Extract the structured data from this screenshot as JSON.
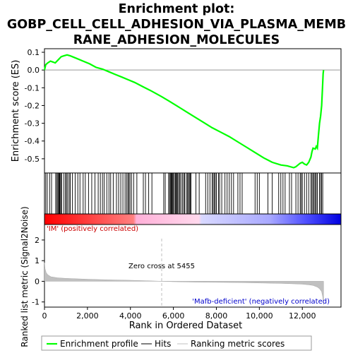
{
  "chart_data": {
    "type": "line",
    "title_lines": [
      "Enrichment plot:",
      "GOBP_CELL_CELL_ADHESION_VIA_PLASMA_MEMB",
      "RANE_ADHESION_MOLECULES"
    ],
    "es_panel": {
      "ylabel": "Enrichment score (ES)",
      "ylim": [
        -0.58,
        0.12
      ],
      "yticks": [
        0.1,
        0.0,
        -0.1,
        -0.2,
        -0.3,
        -0.4,
        -0.5
      ],
      "ytick_labels": [
        "0.1",
        "0.0",
        "-0.1",
        "-0.2",
        "-0.3",
        "-0.4",
        "-0.5"
      ],
      "series": [
        {
          "name": "Enrichment profile",
          "color": "#00ff00",
          "x": [
            0,
            60,
            150,
            280,
            400,
            500,
            620,
            780,
            900,
            1050,
            1200,
            1500,
            1800,
            2100,
            2400,
            2700,
            3000,
            3300,
            3600,
            3900,
            4200,
            4600,
            5000,
            5455,
            5800,
            6200,
            6600,
            7000,
            7400,
            7800,
            8200,
            8600,
            9000,
            9400,
            9800,
            10200,
            10600,
            11000,
            11300,
            11600,
            11700,
            11800,
            11900,
            12000,
            12100,
            12200,
            12300,
            12400,
            12450,
            12500,
            12600,
            12650,
            12700,
            12750,
            12800,
            12850,
            12900,
            12940,
            12970,
            12990
          ],
          "y": [
            0.0,
            0.03,
            0.04,
            0.05,
            0.045,
            0.04,
            0.055,
            0.075,
            0.08,
            0.085,
            0.08,
            0.065,
            0.05,
            0.035,
            0.015,
            0.005,
            -0.01,
            -0.025,
            -0.04,
            -0.055,
            -0.07,
            -0.095,
            -0.12,
            -0.15,
            -0.175,
            -0.205,
            -0.235,
            -0.265,
            -0.295,
            -0.325,
            -0.35,
            -0.375,
            -0.405,
            -0.435,
            -0.465,
            -0.495,
            -0.52,
            -0.535,
            -0.54,
            -0.55,
            -0.545,
            -0.535,
            -0.525,
            -0.52,
            -0.53,
            -0.535,
            -0.52,
            -0.49,
            -0.46,
            -0.44,
            -0.445,
            -0.43,
            -0.44,
            -0.37,
            -0.3,
            -0.26,
            -0.2,
            -0.1,
            -0.02,
            0.0
          ]
        }
      ]
    },
    "hits": [
      60,
      130,
      240,
      330,
      520,
      570,
      620,
      660,
      690,
      720,
      760,
      800,
      900,
      980,
      1020,
      1080,
      1150,
      1200,
      1300,
      1430,
      1550,
      1650,
      1800,
      1900,
      2050,
      2200,
      2350,
      2500,
      2600,
      2700,
      2780,
      2900,
      3000,
      3080,
      3200,
      3350,
      3450,
      3550,
      3650,
      3750,
      3820,
      3880,
      3930,
      3980,
      4050,
      4150,
      4300,
      4600,
      4700,
      4850,
      5000,
      5550,
      5620,
      5780,
      5820,
      5870,
      5900,
      5930,
      5970,
      6000,
      6050,
      6100,
      6130,
      6170,
      6200,
      6250,
      6300,
      6350,
      6420,
      6480,
      6520,
      6600,
      6650,
      6700,
      6740,
      6780,
      6820,
      7050,
      7200,
      7500,
      7600,
      7700,
      7800,
      7850,
      7900,
      7950,
      8000,
      8100,
      8150,
      8250,
      8400,
      8500,
      8600,
      8700,
      8800,
      9000,
      9100,
      9200,
      9800,
      9900,
      10000,
      10400,
      10600,
      10900,
      11000,
      11100,
      11200,
      11400,
      11500,
      11700,
      11800,
      11900,
      11950,
      12000,
      12100,
      12200,
      12300,
      12400,
      12450,
      12500,
      12550,
      12600,
      12650,
      12700,
      12800,
      12850,
      12900,
      12950
    ],
    "metric_panel": {
      "ylabel": "Ranked list metric (Signal2Noise)",
      "ylim": [
        -1.25,
        2.75
      ],
      "yticks": [
        2,
        1,
        0,
        -1
      ],
      "ytick_labels": [
        "2",
        "1",
        "0",
        "-1"
      ],
      "x": [
        0,
        30,
        80,
        150,
        300,
        600,
        1000,
        2000,
        3000,
        4000,
        5000,
        5455,
        6000,
        7000,
        8000,
        9000,
        10000,
        11000,
        11500,
        12000,
        12300,
        12500,
        12700,
        12800,
        12900,
        12950,
        12990
      ],
      "y": [
        0.9,
        0.6,
        0.42,
        0.32,
        0.22,
        0.17,
        0.14,
        0.1,
        0.07,
        0.05,
        0.02,
        0.0,
        -0.02,
        -0.04,
        -0.05,
        -0.06,
        -0.08,
        -0.1,
        -0.12,
        -0.14,
        -0.17,
        -0.2,
        -0.28,
        -0.36,
        -0.5,
        -0.75,
        -1.15
      ],
      "zero_cross_label": "Zero cross at 5455",
      "zero_cross_x": 5455,
      "pos_label": "'IM' (positively correlated)",
      "neg_label": "'Mafb-deficient' (negatively correlated)"
    },
    "xaxis": {
      "xlabel": "Rank in Ordered Dataset",
      "xlim": [
        0,
        13800
      ],
      "xticks": [
        0,
        2000,
        4000,
        6000,
        8000,
        10000,
        12000
      ],
      "xtick_labels": [
        "0",
        "2,000",
        "4,000",
        "6,000",
        "8,000",
        "10,000",
        "12,000"
      ]
    },
    "legend": {
      "placement": "bottom",
      "entries": [
        {
          "label": "Enrichment profile",
          "color": "#00ff00"
        },
        {
          "label": "Hits",
          "color": "#000000"
        },
        {
          "label": "Ranking metric scores",
          "color": "#c0c0c0"
        }
      ]
    },
    "colors": {
      "gradient_red": "#ff0000",
      "gradient_pink": "#ffc0e0",
      "gradient_lightblue": "#c0c0ff",
      "gradient_blue": "#0000ff",
      "metric_fill": "#c0c0c0",
      "zero_line": "#c0c0c0"
    }
  }
}
